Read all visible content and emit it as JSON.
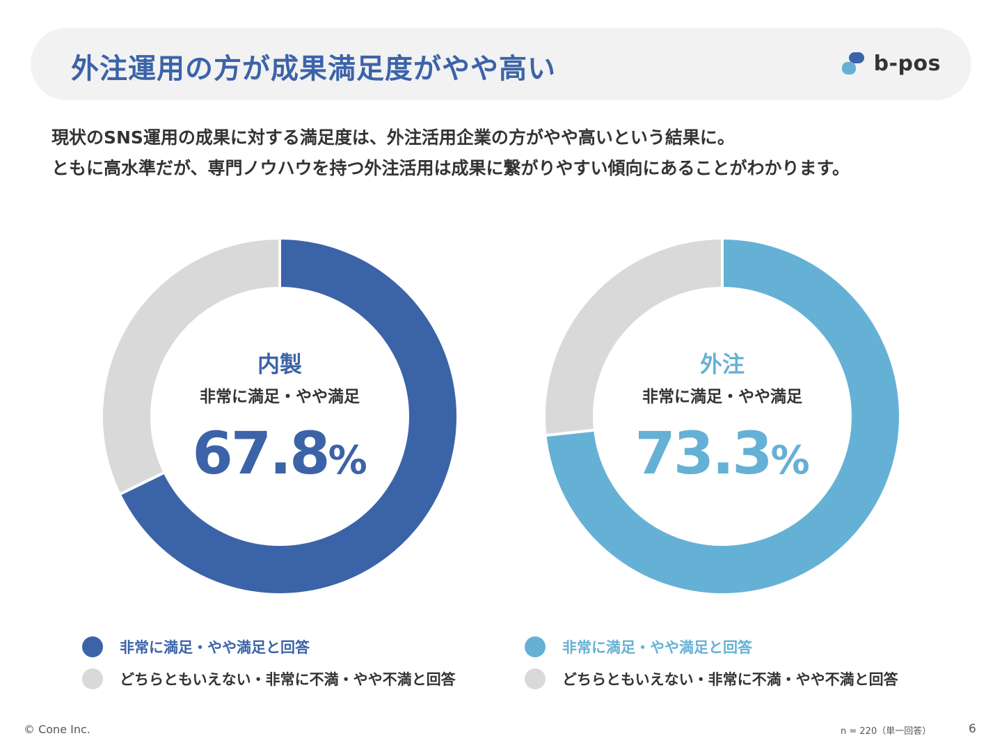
{
  "header": {
    "title": "外注運用の方が成果満足度がやや高い",
    "logo_text": "b-pos"
  },
  "lead": {
    "line1": "現状のSNS運用の成果に対する満足度は、外注活用企業の方がやや高いという結果に。",
    "line2": "ともに高水準だが、専門ノウハウを持つ外注活用は成果に繋がりやすい傾向にあることがわかります。"
  },
  "chart_data": [
    {
      "type": "pie",
      "label": "内製",
      "center_subtitle": "非常に満足・やや満足",
      "value_text": "67.8",
      "unit": "%",
      "slices": [
        {
          "name": "非常に満足・やや満足と回答",
          "value": 67.8,
          "color": "#3b63a8"
        },
        {
          "name": "どちらともいえない・非常に不満・やや不満と回答",
          "value": 32.2,
          "color": "#d9d9d9"
        }
      ]
    },
    {
      "type": "pie",
      "label": "外注",
      "center_subtitle": "非常に満足・やや満足",
      "value_text": "73.3",
      "unit": "%",
      "slices": [
        {
          "name": "非常に満足・やや満足と回答",
          "value": 73.3,
          "color": "#65b1d5"
        },
        {
          "name": "どちらともいえない・非常に不満・やや不満と回答",
          "value": 26.7,
          "color": "#d9d9d9"
        }
      ]
    }
  ],
  "legend": [
    {
      "items": [
        {
          "label": "非常に満足・やや満足と回答",
          "color": "#3b63a8"
        },
        {
          "label": "どちらともいえない・非常に不満・やや不満と回答",
          "color": "#d9d9d9"
        }
      ]
    },
    {
      "items": [
        {
          "label": "非常に満足・やや満足と回答",
          "color": "#65b1d5"
        },
        {
          "label": "どちらともいえない・非常に不満・やや不満と回答",
          "color": "#d9d9d9"
        }
      ]
    }
  ],
  "footer": {
    "copyright": "© Cone Inc.",
    "sample": "n = 220（単一回答）",
    "page": "6"
  }
}
